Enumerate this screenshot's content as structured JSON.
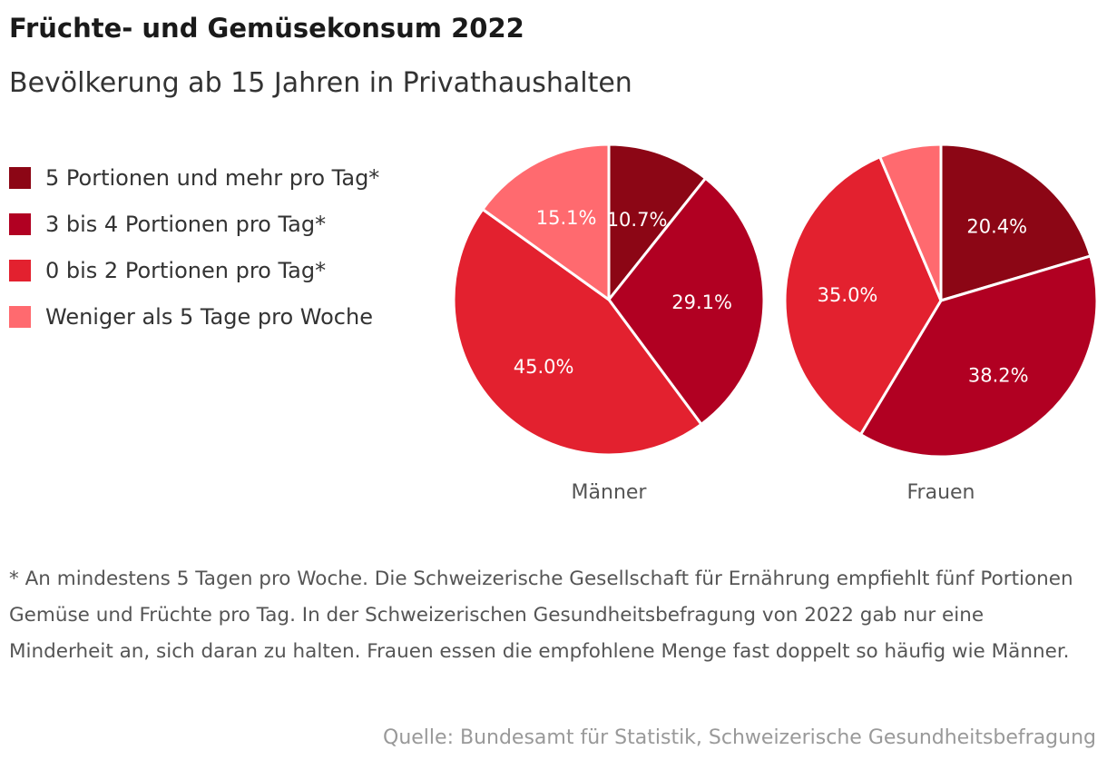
{
  "title": "Früchte- und Gemüsekonsum 2022",
  "subtitle": "Bevölkerung ab 15 Jahren in Privathaushalten",
  "legend": [
    {
      "label": "5 Portionen und mehr pro Tag*",
      "color": "#8c0615"
    },
    {
      "label": "3 bis 4 Portionen pro Tag*",
      "color": "#b10022"
    },
    {
      "label": "0 bis 2 Portionen pro Tag*",
      "color": "#e3212f"
    },
    {
      "label": "Weniger als 5 Tage pro Woche",
      "color": "#ff6a6f"
    }
  ],
  "chart_data": [
    {
      "type": "pie",
      "title": "Männer",
      "categories": [
        "5 Portionen und mehr pro Tag*",
        "3 bis 4 Portionen pro Tag*",
        "0 bis 2 Portionen pro Tag*",
        "Weniger als 5 Tage pro Woche"
      ],
      "values": [
        10.7,
        29.1,
        45.0,
        15.1
      ],
      "labels": [
        "10.7%",
        "29.1%",
        "45.0%",
        "15.1%"
      ]
    },
    {
      "type": "pie",
      "title": "Frauen",
      "categories": [
        "5 Portionen und mehr pro Tag*",
        "3 bis 4 Portionen pro Tag*",
        "0 bis 2 Portionen pro Tag*",
        "Weniger als 5 Tage pro Woche"
      ],
      "values": [
        20.4,
        38.2,
        35.0,
        6.4
      ],
      "labels": [
        "20.4%",
        "38.2%",
        "35.0%",
        ""
      ]
    }
  ],
  "note": "* An mindestens 5 Tagen pro Woche. Die Schweizerische Gesellschaft für Ernährung empfiehlt fünf Portionen Gemüse und Früchte pro Tag. In der Schweizerischen Gesundheitsbefragung von 2022 gab nur eine Minderheit an, sich daran zu halten. Frauen essen die empfohlene Menge fast doppelt so häufig wie Männer.",
  "source": "Quelle: Bundesamt für Statistik, Schweizerische Gesundheitsbefragung"
}
